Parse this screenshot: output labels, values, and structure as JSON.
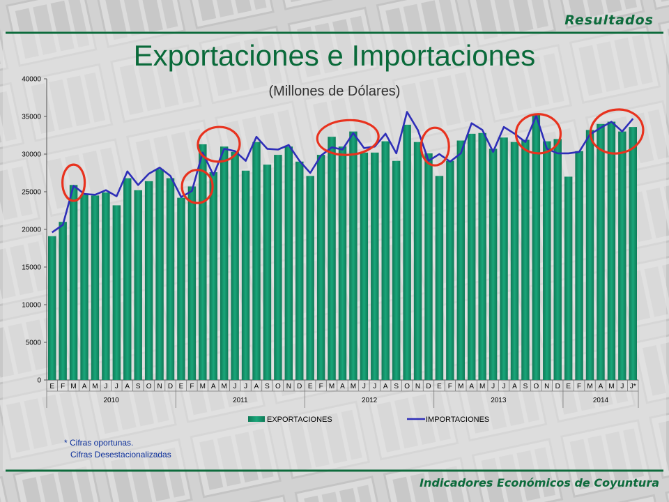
{
  "header": {
    "section": "Resultados"
  },
  "footer": {
    "label": "Indicadores Económicos de Coyuntura"
  },
  "colors": {
    "bars": "#1aa67a",
    "line": "#2e2eb8",
    "title": "#0a6a3a",
    "highlight": "#e8321e",
    "frame": "#0d6b3c"
  },
  "chart_data": {
    "type": "bar",
    "title": "Exportaciones e Importaciones",
    "subtitle": "(Millones de Dólares)",
    "ylim": [
      0,
      40000
    ],
    "yticks": [
      "0",
      "5000",
      "10000",
      "15000",
      "20000",
      "25000",
      "30000",
      "35000",
      "40000"
    ],
    "categories": [
      "E",
      "F",
      "M",
      "A",
      "M",
      "J",
      "J",
      "A",
      "S",
      "O",
      "N",
      "D",
      "E",
      "F",
      "M",
      "A",
      "M",
      "J",
      "J",
      "A",
      "S",
      "O",
      "N",
      "D",
      "E",
      "F",
      "M",
      "A",
      "M",
      "J",
      "J",
      "A",
      "S",
      "O",
      "N",
      "D",
      "E",
      "F",
      "M",
      "A",
      "M",
      "J",
      "J",
      "A",
      "S",
      "O",
      "N",
      "D",
      "E",
      "F",
      "M",
      "A",
      "M",
      "J",
      "J*"
    ],
    "years": [
      {
        "label": "2010",
        "count": 12
      },
      {
        "label": "2011",
        "count": 12
      },
      {
        "label": "2012",
        "count": 12
      },
      {
        "label": "2013",
        "count": 12
      },
      {
        "label": "2014",
        "count": 7
      }
    ],
    "series": [
      {
        "name": "EXPORTACIONES",
        "kind": "bar",
        "values": [
          19100,
          21000,
          25900,
          24600,
          24500,
          24900,
          23200,
          26800,
          25200,
          26400,
          28000,
          26800,
          24200,
          25700,
          31300,
          27600,
          31000,
          30300,
          27800,
          31600,
          28600,
          29900,
          31000,
          29000,
          27100,
          29900,
          32300,
          31000,
          33000,
          30200,
          30200,
          31700,
          29100,
          33900,
          31600,
          30100,
          27100,
          29100,
          31800,
          32700,
          32800,
          30700,
          32200,
          31600,
          31900,
          35200,
          31700,
          32000,
          27000,
          30400,
          33200,
          34000,
          34300,
          33000,
          33600
        ]
      },
      {
        "name": "IMPORTACIONES",
        "kind": "line",
        "values": [
          19600,
          20600,
          25800,
          24700,
          24600,
          25200,
          24400,
          27700,
          25900,
          27400,
          28200,
          27100,
          24300,
          25100,
          30200,
          27200,
          30700,
          30400,
          29100,
          32300,
          30700,
          30600,
          31200,
          29100,
          27500,
          29800,
          30900,
          30600,
          32800,
          30800,
          31000,
          32700,
          30100,
          35600,
          33200,
          29100,
          30000,
          29000,
          30100,
          34100,
          33200,
          30300,
          33600,
          32700,
          31600,
          35100,
          30700,
          30100,
          30100,
          30300,
          32600,
          33500,
          34300,
          33000,
          34700
        ]
      }
    ],
    "legend_position": "bottom",
    "grid": false
  },
  "notes": {
    "line1": "* Cifras oportunas.",
    "line2": "Cifras Desestacionalizadas"
  }
}
